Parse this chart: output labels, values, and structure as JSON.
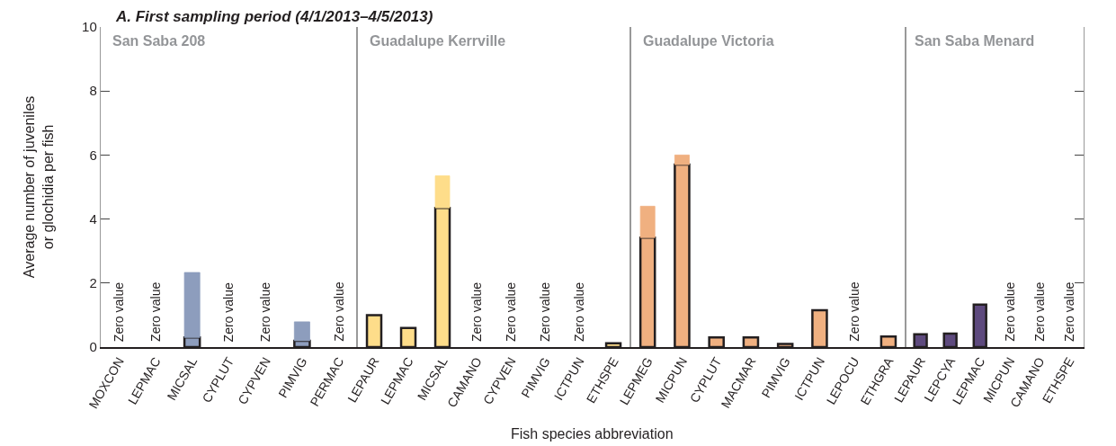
{
  "chart_data": [
    {
      "type": "bar",
      "stacked": true,
      "title": "A. First sampling period (4/1/2013–4/5/2013)",
      "subtitle": "San Saba 208",
      "ylabel": "Average number of juveniles\nor glochidia per fish",
      "categories": [
        "MOXCON",
        "LEPMAC",
        "MICSAL",
        "CYPLUT",
        "CYPVEN",
        "PIMVIG",
        "PERMAC"
      ],
      "series": [
        {
          "color": "#8d9dbd",
          "values": [
            0,
            0,
            0.3,
            0,
            0,
            0.2,
            0
          ]
        },
        {
          "color": "#8d9dbd",
          "values": [
            null,
            null,
            2.03,
            null,
            null,
            0.59,
            null
          ]
        }
      ],
      "annotations": [
        {
          "text": "Zero value",
          "x": "MOXCON",
          "y": 0
        },
        {
          "text": "Zero value",
          "x": "LEPMAC",
          "y": 0
        },
        {
          "text": "Zero value",
          "x": "CYPLUT",
          "y": 0
        },
        {
          "text": "Zero value",
          "x": "CYPVEN",
          "y": 0
        },
        {
          "text": "Zero value",
          "x": "PERMAC",
          "y": 0
        }
      ],
      "ylim": [
        0,
        10
      ],
      "yticks": [
        0,
        2,
        4,
        6,
        8,
        10
      ]
    },
    {
      "type": "bar",
      "stacked": true,
      "subtitle": "Guadalupe Kerrville",
      "xlabel": "Fish species abbreviation",
      "categories": [
        "LEPAUR",
        "LEPMAC",
        "MICSAL",
        "CAMANO",
        "CYPVEN",
        "PIMVIG",
        "ICTPUN",
        "ETHSPE"
      ],
      "series": [
        {
          "color": "#fedd8a",
          "values": [
            1.0,
            0.6,
            4.35,
            0,
            0,
            0,
            0,
            0.12
          ]
        },
        {
          "color": "#fedd8a",
          "values": [
            null,
            null,
            1.0,
            null,
            null,
            null,
            null,
            null
          ]
        }
      ],
      "annotations": [
        {
          "text": "Zero value",
          "x": "CAMANO",
          "y": 0
        },
        {
          "text": "Zero value",
          "x": "CYPVEN",
          "y": 0
        },
        {
          "text": "Zero value",
          "x": "PIMVIG",
          "y": 0
        },
        {
          "text": "Zero value",
          "x": "ICTPUN",
          "y": 0
        }
      ],
      "ylim": [
        0,
        10
      ],
      "yticks": [
        0,
        2,
        4,
        6,
        8,
        10
      ],
      "tick_labels": "x"
    },
    {
      "type": "bar",
      "stacked": true,
      "subtitle": "Guadalupe Victoria",
      "categories": [
        "LEPMEG",
        "MICPUN",
        "CYPLUT",
        "MACMAR",
        "PIMVIG",
        "ICTPUN",
        "LEPOCU",
        "ETHGRA"
      ],
      "series": [
        {
          "color": "#f0b080",
          "values": [
            3.42,
            5.7,
            0.3,
            0.3,
            0.1,
            1.15,
            0,
            0.33
          ]
        },
        {
          "color": "#f0b080",
          "values": [
            0.98,
            0.3,
            null,
            null,
            null,
            null,
            null,
            null
          ]
        }
      ],
      "annotations": [
        {
          "text": "Zero value",
          "x": "LEPOCU",
          "y": 0
        }
      ],
      "ylim": [
        0,
        10
      ],
      "yticks": [
        0,
        2,
        4,
        6,
        8,
        10
      ],
      "tick_labels": "x"
    },
    {
      "type": "bar",
      "stacked": true,
      "subtitle": "San Saba Menard",
      "categories": [
        "LEPAUR",
        "LEPCYA",
        "LEPMAC",
        "MICPUN",
        "CAMANO",
        "ETHSPE"
      ],
      "series": [
        {
          "color": "#5e4a7e",
          "values": [
            0.4,
            0.42,
            1.33,
            0,
            0,
            0
          ]
        }
      ],
      "annotations": [
        {
          "text": "Zero value",
          "x": "MICPUN",
          "y": 0
        },
        {
          "text": "Zero value",
          "x": "CAMANO",
          "y": 0
        },
        {
          "text": "Zero value",
          "x": "ETHSPE",
          "y": 0
        }
      ],
      "ylim": [
        0,
        10
      ],
      "yticks": [
        0,
        2,
        4,
        6,
        8,
        10
      ],
      "tick_labels": "x"
    }
  ]
}
